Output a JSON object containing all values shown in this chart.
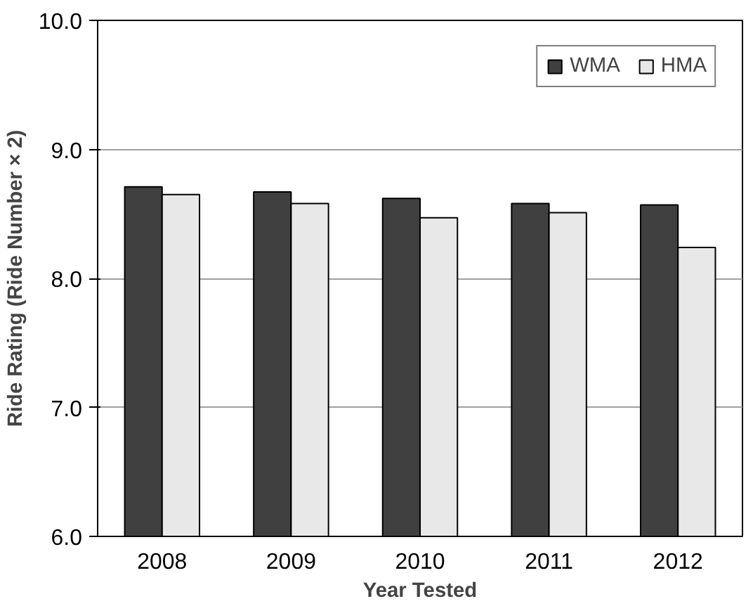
{
  "chart_data": {
    "type": "bar",
    "xlabel": "Year Tested",
    "ylabel": "Ride Rating (Ride Number × 2)",
    "categories": [
      "2008",
      "2009",
      "2010",
      "2011",
      "2012"
    ],
    "series": [
      {
        "name": "WMA",
        "color": "#404040",
        "values": [
          8.71,
          8.67,
          8.62,
          8.58,
          8.57
        ]
      },
      {
        "name": "HMA",
        "color": "#e8e8e8",
        "values": [
          8.65,
          8.58,
          8.47,
          8.51,
          8.24
        ]
      }
    ],
    "ylim": [
      6.0,
      10.0
    ],
    "yticks": [
      {
        "value": 6,
        "label": "6.0"
      },
      {
        "value": 7,
        "label": "7.0"
      },
      {
        "value": 8,
        "label": "8.0"
      },
      {
        "value": 9,
        "label": "9.0"
      },
      {
        "value": 10,
        "label": "10.0"
      }
    ],
    "grid": "y",
    "legend": "top right"
  }
}
